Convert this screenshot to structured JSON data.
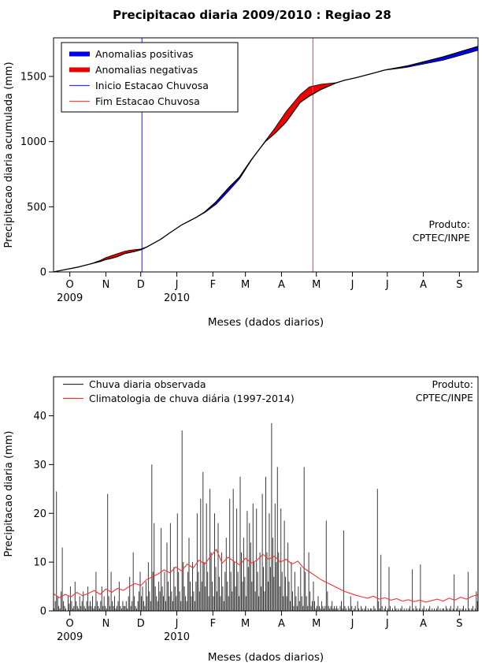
{
  "title": "Precipitacao diaria 2009/2010 : Regiao 28",
  "chart_data": [
    {
      "id": "cumulative",
      "type": "area",
      "title": "Precipitacao diaria 2009/2010 : Regiao 28",
      "xlabel": "Meses (dados diarios)",
      "ylabel": "Precipitacao diaria acumulada (mm)",
      "ylim": [
        0,
        1796
      ],
      "yticks": [
        0,
        500,
        1000,
        1500
      ],
      "xlim_days": [
        0,
        365
      ],
      "month_ticks": {
        "days": [
          14,
          45,
          75,
          106,
          137,
          165,
          196,
          226,
          257,
          287,
          318,
          349
        ],
        "labels": [
          "O",
          "N",
          "D",
          "J",
          "F",
          "M",
          "A",
          "M",
          "J",
          "J",
          "A",
          "S"
        ]
      },
      "year_labels": [
        {
          "text": "2009",
          "day": 14
        },
        {
          "text": "2010",
          "day": 106
        }
      ],
      "legend": {
        "box": true,
        "entries": [
          {
            "label": "Anomalias positivas",
            "color": "#0000ee",
            "lw": 6
          },
          {
            "label": "Anomalias negativas",
            "color": "#ee0000",
            "lw": 6
          },
          {
            "label": "Inicio Estacao Chuvosa",
            "color": "#3333ff",
            "lw": 1.2
          },
          {
            "label": "Fim Estacao Chuvosa",
            "color": "#ff4444",
            "lw": 1.2
          }
        ]
      },
      "annotation": [
        "Produto:",
        "CPTEC/INPE"
      ],
      "series_days": [
        0,
        10,
        20,
        31,
        40,
        45,
        50,
        55,
        61,
        65,
        70,
        75,
        80,
        85,
        92,
        100,
        110,
        123,
        130,
        140,
        151,
        160,
        170,
        182,
        190,
        200,
        212,
        220,
        230,
        243,
        250,
        260,
        273,
        285,
        304,
        315,
        335,
        350,
        365
      ],
      "observed_cum": [
        0,
        18,
        35,
        60,
        80,
        95,
        105,
        118,
        140,
        148,
        158,
        170,
        190,
        215,
        250,
        300,
        360,
        420,
        460,
        540,
        650,
        730,
        860,
        1000,
        1060,
        1150,
        1300,
        1350,
        1400,
        1450,
        1470,
        1490,
        1520,
        1550,
        1580,
        1605,
        1650,
        1690,
        1730
      ],
      "climatology_cum": [
        0,
        18,
        35,
        60,
        88,
        110,
        125,
        140,
        158,
        165,
        172,
        176,
        192,
        215,
        250,
        300,
        360,
        420,
        455,
        520,
        625,
        715,
        855,
        1005,
        1100,
        1230,
        1360,
        1420,
        1440,
        1452,
        1470,
        1490,
        1520,
        1548,
        1570,
        1590,
        1625,
        1662,
        1700
      ],
      "inicio_day": 76,
      "fim_day": 223,
      "colors": {
        "positive": "#0000ee",
        "negative": "#ee0000",
        "observed_line": "#000000",
        "climatology_line": "#000000",
        "inicio_line": "#3333ff",
        "fim_line": "#ff4444"
      }
    },
    {
      "id": "daily",
      "type": "bar",
      "xlabel": "Meses (dados diarios)",
      "ylabel": "Precipitacao diaria (mm)",
      "ylim": [
        0,
        48
      ],
      "yticks": [
        0,
        10,
        20,
        30,
        40
      ],
      "xlim_days": [
        0,
        365
      ],
      "month_ticks": {
        "days": [
          14,
          45,
          75,
          106,
          137,
          165,
          196,
          226,
          257,
          287,
          318,
          349
        ],
        "labels": [
          "O",
          "N",
          "D",
          "J",
          "F",
          "M",
          "A",
          "M",
          "J",
          "J",
          "A",
          "S"
        ]
      },
      "year_labels": [
        {
          "text": "2009",
          "day": 14
        },
        {
          "text": "2010",
          "day": 106
        }
      ],
      "legend": {
        "box": false,
        "entries": [
          {
            "label": "Chuva diaria observada",
            "color": "#333333",
            "lw": 1.2
          },
          {
            "label": "Climatologia de chuva diária (1997-2014)",
            "color": "#ff3030",
            "lw": 1.2
          }
        ]
      },
      "annotation": [
        "Produto:",
        "CPTEC/INPE"
      ],
      "daily_observed": [
        0.5,
        2,
        24.5,
        3,
        1,
        0.5,
        4,
        13,
        2,
        1,
        0.5,
        0,
        3,
        1.5,
        5,
        2,
        0.5,
        1,
        6,
        2,
        1,
        0.5,
        3,
        1,
        2,
        4,
        1,
        0.5,
        2,
        5,
        1,
        2,
        1,
        3,
        0.5,
        1,
        8,
        2,
        1,
        0.5,
        2,
        5,
        1,
        3,
        1,
        0.5,
        24,
        3,
        1,
        8,
        2,
        1,
        3,
        0.5,
        1,
        2,
        6,
        1,
        0.5,
        2,
        1,
        1,
        2,
        0.5,
        3,
        7,
        1,
        2,
        12,
        3,
        1,
        0.5,
        2,
        4,
        8,
        3,
        5,
        2,
        1,
        6,
        3,
        10,
        4,
        2,
        30,
        8,
        18,
        5,
        3,
        2,
        6,
        4,
        17,
        5,
        3,
        8,
        2,
        14,
        6,
        3,
        18,
        4,
        2,
        9,
        5,
        3,
        20,
        8,
        4,
        2,
        37,
        10,
        5,
        3,
        2,
        8,
        15,
        6,
        3,
        10,
        4,
        2,
        6,
        20,
        8,
        4,
        23,
        6,
        28.5,
        10,
        5,
        22,
        8,
        3,
        25,
        12,
        6,
        3,
        20,
        9,
        4,
        18,
        7,
        3,
        12,
        5,
        2,
        8,
        15,
        6,
        3,
        23,
        8,
        4,
        25,
        10,
        5,
        21,
        8,
        3,
        27.5,
        12,
        6,
        15,
        7,
        3,
        20.5,
        9,
        18,
        14,
        6,
        22,
        10,
        4,
        21,
        8,
        3,
        12,
        5,
        24,
        9,
        4,
        27.5,
        12,
        6,
        20,
        9,
        38.5,
        15,
        7,
        22,
        10,
        29.5,
        12,
        5,
        21,
        8,
        3,
        18.5,
        7,
        3,
        14,
        6,
        2,
        10,
        4,
        1,
        8,
        3,
        1,
        5,
        2,
        9,
        3,
        1,
        29.5,
        8,
        3,
        1,
        12,
        4,
        1,
        2,
        6,
        2,
        0.5,
        1,
        3,
        1,
        0.5,
        2,
        1,
        0.5,
        1,
        18.5,
        4,
        1,
        0.5,
        1,
        2,
        0.5,
        1,
        0.5,
        1,
        0.5,
        0,
        1,
        2,
        0.5,
        16.5,
        1,
        0.5,
        0,
        1,
        0.5,
        3,
        1,
        0,
        0.5,
        1,
        0,
        2,
        0.5,
        0,
        1,
        0.5,
        0,
        0.5,
        1,
        0,
        0.5,
        0,
        0.5,
        0.5,
        0,
        1,
        0.5,
        0,
        25,
        2,
        0.5,
        11.5,
        1,
        0,
        0.5,
        1,
        0,
        0.5,
        9,
        1,
        0,
        0.5,
        0,
        1,
        0.5,
        0,
        0.5,
        0,
        0.5,
        1,
        0,
        0.5,
        0,
        0.5,
        0,
        0.5,
        1,
        0,
        8.5,
        0.5,
        0,
        1,
        0.5,
        0,
        0.5,
        9.5,
        0,
        0.5,
        1,
        0,
        0.5,
        0,
        0.5,
        1,
        0,
        0.5,
        0,
        0.5,
        0,
        0.5,
        1,
        0,
        0.5,
        0,
        0.5,
        0.5,
        0,
        1,
        0.5,
        0,
        0.5,
        1,
        0,
        0.5,
        7.5,
        0,
        0.5,
        1,
        0,
        0.5,
        0,
        0.5,
        1,
        0,
        0.5,
        0,
        8,
        0.5,
        0,
        0.5,
        1,
        0,
        0.5,
        4,
        2
      ],
      "climatology_day_step": 5,
      "climatology_values": [
        3.5,
        2.7,
        3.4,
        2.9,
        3.8,
        3.1,
        3.6,
        4.2,
        3.4,
        4.5,
        3.8,
        4.6,
        4.2,
        5.0,
        5.6,
        5.2,
        6.4,
        7.0,
        7.6,
        8.4,
        7.8,
        9.0,
        8.2,
        9.6,
        8.8,
        10.4,
        9.6,
        11.2,
        12.6,
        9.8,
        11.0,
        10.2,
        9.4,
        10.8,
        9.8,
        10.4,
        11.6,
        10.6,
        11.2,
        10.0,
        10.6,
        9.6,
        10.2,
        8.8,
        8.0,
        7.2,
        6.4,
        5.8,
        5.2,
        4.6,
        4.0,
        3.6,
        3.2,
        2.9,
        2.6,
        3.0,
        2.4,
        2.7,
        2.2,
        2.5,
        2.0,
        2.3,
        1.9,
        2.2,
        1.8,
        2.1,
        2.4,
        2.0,
        2.6,
        2.2,
        2.8,
        2.4,
        3.0,
        3.3
      ],
      "colors": {
        "bars": "#3a3a3a",
        "climatology": "#ff3030"
      }
    }
  ]
}
